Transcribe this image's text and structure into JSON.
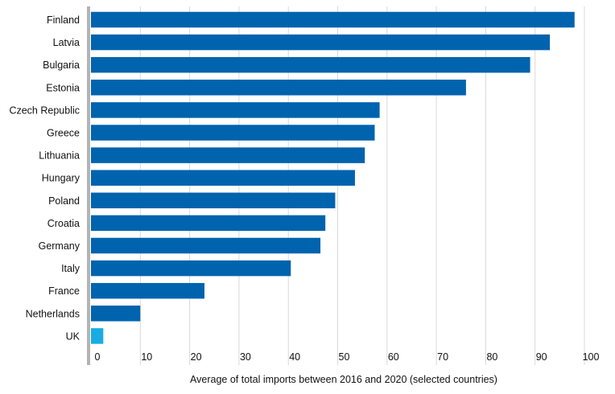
{
  "chart_data": {
    "type": "bar",
    "orientation": "horizontal",
    "categories": [
      "Finland",
      "Latvia",
      "Bulgaria",
      "Estonia",
      "Czech Republic",
      "Greece",
      "Lithuania",
      "Hungary",
      "Poland",
      "Croatia",
      "Germany",
      "Italy",
      "France",
      "Netherlands",
      "UK"
    ],
    "values": [
      98,
      93,
      89,
      76,
      58.5,
      57.5,
      55.5,
      53.5,
      49.5,
      47.5,
      46.5,
      40.5,
      23,
      10,
      2.5
    ],
    "highlight_category": "UK",
    "colors": {
      "bar": "#0063ae",
      "highlight": "#18ace2",
      "axis": "#b3b3b3",
      "grid": "#d9d9d9",
      "text": "#111111"
    },
    "xlim": [
      0,
      100
    ],
    "xticks": [
      0,
      10,
      20,
      30,
      40,
      50,
      60,
      70,
      80,
      90,
      100
    ],
    "xlabel": "Average of total imports between 2016 and 2020 (selected countries)",
    "ylabel": "",
    "title": "",
    "grid": "vertical"
  }
}
